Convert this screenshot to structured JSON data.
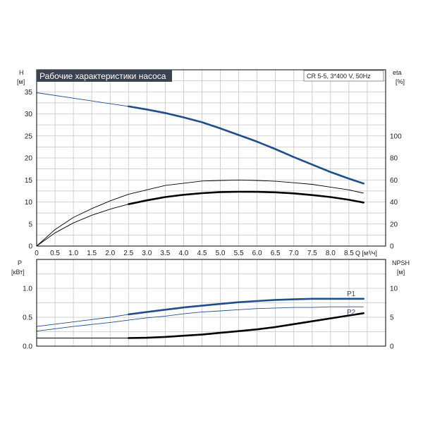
{
  "chart_data": [
    {
      "type": "line",
      "title": "Рабочие характеристики насоса",
      "subtitle": "CR 5-5, 3*400 V, 50Hz",
      "x_axis": {
        "label": "Q [м³/ч]",
        "range": [
          0,
          9.5
        ],
        "tick_labels": [
          "0",
          "0.5",
          "1.0",
          "1.5",
          "2.0",
          "2.5",
          "3.0",
          "3.5",
          "4.0",
          "4.5",
          "5.0",
          "5.5",
          "6.0",
          "6.5",
          "7.0",
          "7.5",
          "8.0",
          "8.5"
        ]
      },
      "y_axis_left": {
        "label_top": "H",
        "label_unit": "[м]",
        "range": [
          0,
          40
        ],
        "tick_labels": [
          "0",
          "5",
          "10",
          "15",
          "20",
          "25",
          "30",
          "35"
        ]
      },
      "y_axis_right": {
        "label_top": "eta",
        "label_unit": "[%]",
        "range": [
          0,
          160
        ],
        "tick_labels": [
          "0",
          "20",
          "40",
          "60",
          "80",
          "100"
        ]
      },
      "grid": true,
      "series": [
        {
          "color": "#1f4e8c",
          "thin_range": [
            0,
            2.5
          ],
          "thick_range": [
            2.5,
            8.9
          ],
          "x": [
            0,
            2.5,
            3.0,
            3.5,
            4.0,
            4.5,
            5.0,
            5.5,
            6.0,
            6.5,
            7.0,
            7.5,
            8.0,
            8.5,
            8.9
          ],
          "y": [
            34.8,
            31.7,
            31.0,
            30.2,
            29.2,
            28.1,
            26.7,
            25.2,
            23.7,
            22.0,
            20.2,
            18.5,
            16.8,
            15.3,
            14.2
          ]
        },
        {
          "color": "#000000",
          "thin_range": [
            0,
            8.9
          ],
          "thick_range": [],
          "x": [
            0,
            0.5,
            1.0,
            1.5,
            2.0,
            2.5,
            3.0,
            3.5,
            4.0,
            4.5,
            5.0,
            5.5,
            6.0,
            6.5,
            7.0,
            7.5,
            8.0,
            8.5,
            8.9
          ],
          "y": [
            0,
            15,
            26,
            34,
            41,
            47,
            51,
            55,
            57,
            59,
            59.5,
            60,
            59.5,
            58.8,
            57.5,
            56,
            53.5,
            51,
            48
          ]
        },
        {
          "color": "#000000",
          "thin_range": [
            0,
            2.5
          ],
          "thick_range": [
            2.5,
            8.9
          ],
          "x": [
            0,
            0.5,
            1.0,
            1.5,
            2.0,
            2.5,
            3.0,
            3.5,
            4.0,
            4.5,
            5.0,
            5.5,
            6.0,
            6.5,
            7.0,
            7.5,
            8.0,
            8.5,
            8.9
          ],
          "y": [
            0,
            12,
            21,
            28,
            33.5,
            38,
            41.5,
            44.5,
            46.5,
            48,
            49,
            49.3,
            49.2,
            48.8,
            47.8,
            46.3,
            44.5,
            42,
            39.5
          ]
        }
      ]
    },
    {
      "type": "line",
      "x_axis": {
        "label": "",
        "range": [
          0,
          9.5
        ]
      },
      "y_axis_left": {
        "label_top": "P",
        "label_unit": "[кВт]",
        "range": [
          0,
          1.5
        ],
        "tick_labels": [
          "0.0",
          "0.5",
          "1.0"
        ]
      },
      "y_axis_right": {
        "label_top": "NPSH",
        "label_unit": "[м]",
        "range": [
          0,
          15
        ],
        "tick_labels": [
          "0",
          "5",
          "10"
        ]
      },
      "grid": true,
      "series": [
        {
          "name": "P1",
          "color": "#1f4e8c",
          "thin_range": [
            0,
            2.5
          ],
          "thick_range": [
            2.5,
            8.9
          ],
          "x": [
            0,
            1.0,
            2.0,
            2.5,
            3.0,
            3.5,
            4.0,
            4.5,
            5.0,
            5.5,
            6.0,
            6.5,
            7.0,
            7.5,
            8.0,
            8.5,
            8.9
          ],
          "y": [
            0.34,
            0.42,
            0.5,
            0.55,
            0.59,
            0.63,
            0.67,
            0.7,
            0.73,
            0.76,
            0.78,
            0.8,
            0.81,
            0.82,
            0.82,
            0.82,
            0.82
          ]
        },
        {
          "name": "P2",
          "color": "#1f4e8c",
          "thin_range": [
            0,
            8.9
          ],
          "thick_range": [],
          "x": [
            0,
            1.0,
            2.0,
            2.5,
            3.0,
            3.5,
            4.0,
            4.5,
            5.0,
            5.5,
            6.0,
            6.5,
            7.0,
            7.5,
            8.0,
            8.5,
            8.9
          ],
          "y": [
            0.26,
            0.34,
            0.41,
            0.45,
            0.49,
            0.52,
            0.56,
            0.59,
            0.61,
            0.63,
            0.65,
            0.66,
            0.67,
            0.67,
            0.68,
            0.68,
            0.68
          ]
        },
        {
          "color": "#000000",
          "thin_range": [
            0,
            2.5
          ],
          "thick_range": [
            2.5,
            8.9
          ],
          "x": [
            0,
            1.0,
            2.0,
            2.5,
            3.0,
            3.5,
            4.0,
            4.5,
            5.0,
            5.5,
            6.0,
            6.5,
            7.0,
            7.5,
            8.0,
            8.5,
            8.9
          ],
          "y": [
            1.4,
            1.4,
            1.4,
            1.4,
            1.45,
            1.6,
            1.8,
            2.0,
            2.3,
            2.6,
            2.9,
            3.3,
            3.8,
            4.3,
            4.8,
            5.3,
            5.7
          ]
        }
      ]
    }
  ]
}
